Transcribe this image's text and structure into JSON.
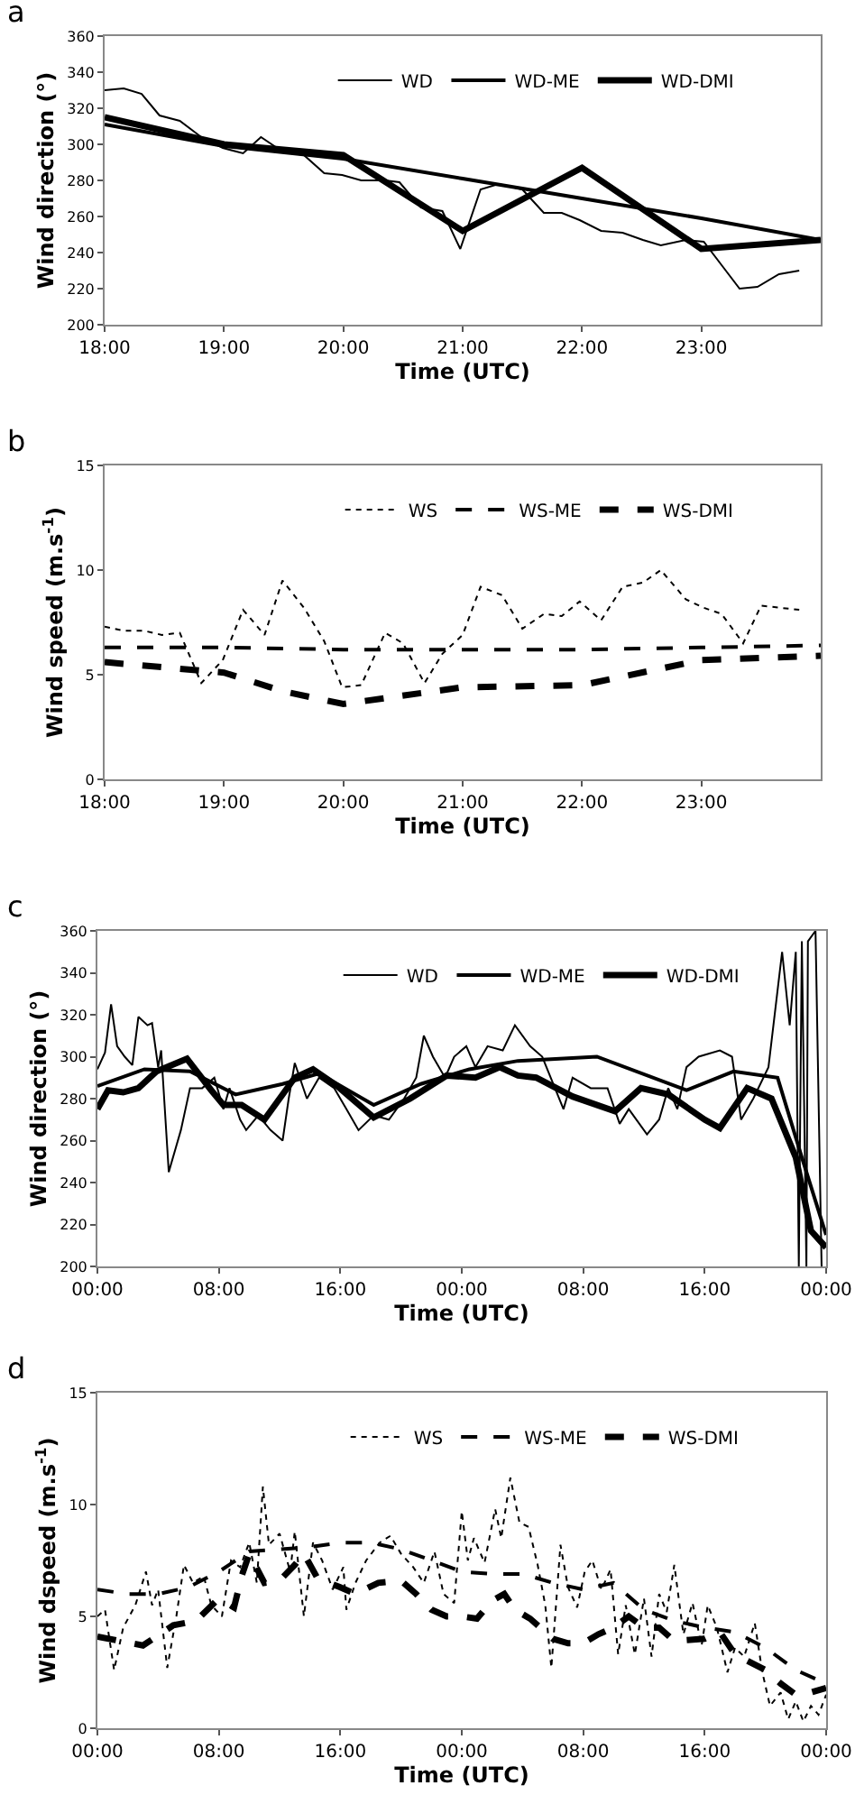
{
  "chart_data": [
    {
      "type": "line",
      "title": "a",
      "xlabel": "Time (UTC)",
      "ylabel": "Wind direction (°)",
      "legend": "top right",
      "xlim": [
        18,
        24
      ],
      "xticks": [
        {
          "value": 18,
          "label": "18:00"
        },
        {
          "value": 19,
          "label": "19:00"
        },
        {
          "value": 20,
          "label": "20:00"
        },
        {
          "value": 21,
          "label": "21:00"
        },
        {
          "value": 22,
          "label": "22:00"
        },
        {
          "value": 23,
          "label": "23:00"
        }
      ],
      "ylim": [
        200,
        360
      ],
      "yticks": [
        200,
        220,
        240,
        260,
        280,
        300,
        320,
        340,
        360
      ],
      "series": [
        {
          "name": "WD",
          "color": "#000000",
          "line_style": "solid",
          "x": [
            18,
            18.16,
            18.31,
            18.46,
            18.63,
            18.81,
            18.99,
            19.16,
            19.31,
            19.49,
            19.67,
            19.84,
            19.99,
            20.15,
            20.35,
            20.47,
            20.65,
            20.83,
            20.98,
            21.15,
            21.3,
            21.5,
            21.68,
            21.83,
            21.98,
            22.16,
            22.34,
            22.51,
            22.66,
            22.87,
            23.02,
            23.17,
            23.32,
            23.47,
            23.65,
            23.82
          ],
          "values": [
            330,
            331,
            328,
            316,
            313,
            304,
            298,
            295,
            304,
            296,
            294,
            284,
            283,
            280,
            280,
            279,
            265,
            263,
            242,
            275,
            278,
            275,
            262,
            262,
            258,
            252,
            251,
            247,
            244,
            247,
            246,
            233,
            220,
            221,
            228,
            230
          ]
        },
        {
          "name": "WD-ME",
          "color": "#000000",
          "line_style": "solid",
          "x": [
            18,
            19,
            20,
            21,
            22,
            23,
            24
          ],
          "values": [
            311,
            299,
            292,
            281,
            270,
            259,
            247
          ]
        },
        {
          "name": "WD-DMI",
          "color": "#000000",
          "line_style": "solid",
          "x": [
            18,
            19,
            20,
            21,
            22,
            23,
            24
          ],
          "values": [
            315,
            300,
            294,
            252,
            287,
            242,
            247
          ]
        }
      ]
    },
    {
      "type": "line",
      "title": "b",
      "xlabel": "Time (UTC)",
      "ylabel": "Wind speed (m.s$^{-1}$)",
      "legend": "top right",
      "xlim": [
        18,
        24
      ],
      "xticks": [
        {
          "value": 18,
          "label": "18:00"
        },
        {
          "value": 19,
          "label": "19:00"
        },
        {
          "value": 20,
          "label": "20:00"
        },
        {
          "value": 21,
          "label": "21:00"
        },
        {
          "value": 22,
          "label": "22:00"
        },
        {
          "value": 23,
          "label": "23:00"
        }
      ],
      "ylim": [
        0,
        15
      ],
      "yticks": [
        0,
        5,
        10,
        15
      ],
      "series": [
        {
          "name": "WS",
          "color": "#000000",
          "line_style": "dotted",
          "x": [
            18,
            18.16,
            18.33,
            18.48,
            18.63,
            18.81,
            18.99,
            19.16,
            19.34,
            19.49,
            19.67,
            19.84,
            19.99,
            20.15,
            20.35,
            20.5,
            20.68,
            20.83,
            21.0,
            21.15,
            21.33,
            21.5,
            21.68,
            21.83,
            21.98,
            22.16,
            22.34,
            22.51,
            22.66,
            22.87,
            23.02,
            23.17,
            23.35,
            23.5,
            23.82
          ],
          "values": [
            7.3,
            7.1,
            7.1,
            6.9,
            7.0,
            4.6,
            5.7,
            8.1,
            6.9,
            9.5,
            8.2,
            6.6,
            4.4,
            4.5,
            7.0,
            6.5,
            4.6,
            6.0,
            6.9,
            9.2,
            8.8,
            7.2,
            7.9,
            7.8,
            8.5,
            7.6,
            9.2,
            9.4,
            10.0,
            8.6,
            8.2,
            7.9,
            6.5,
            8.3,
            8.1
          ]
        },
        {
          "name": "WS-ME",
          "color": "#000000",
          "line_style": "dashed",
          "x": [
            18,
            19,
            20,
            21,
            22,
            23,
            24
          ],
          "values": [
            6.3,
            6.3,
            6.2,
            6.2,
            6.2,
            6.3,
            6.4
          ]
        },
        {
          "name": "WS-DMI",
          "color": "#000000",
          "line_style": "dashed",
          "x": [
            18,
            19,
            19.5,
            20,
            21,
            22,
            23,
            24
          ],
          "values": [
            5.6,
            5.1,
            4.2,
            3.6,
            4.4,
            4.5,
            5.7,
            5.9
          ]
        }
      ]
    },
    {
      "type": "line",
      "title": "c",
      "xlabel": "Time (UTC)",
      "ylabel": "Wind direction (°)",
      "legend": "top right",
      "xlim": [
        "--01-01T00:00",
        "--01-03T00:00"
      ],
      "xticks": [
        {
          "value": "--01-01T00:00",
          "label": "00:00"
        },
        {
          "value": "--01-01T08:00",
          "label": "08:00"
        },
        {
          "value": "--01-01T16:00",
          "label": "16:00"
        },
        {
          "value": "--01-02T00:00",
          "label": "00:00"
        },
        {
          "value": "--01-02T08:00",
          "label": "08:00"
        },
        {
          "value": "--01-02T16:00",
          "label": "16:00"
        },
        {
          "value": "--01-03T00:00",
          "label": "00:00"
        }
      ],
      "ylim": [
        200,
        360
      ],
      "yticks": [
        200,
        220,
        240,
        260,
        280,
        300,
        320,
        340,
        360
      ],
      "series": [
        {
          "name": "WD",
          "color": "#000000",
          "line_style": "solid",
          "x": [
            "--01-01T00:00",
            "--01-01T00:30",
            "--01-01T00:54",
            "--01-01T01:18",
            "--01-01T01:48",
            "--01-01T02:18",
            "--01-01T02:42",
            "--01-01T03:18",
            "--01-01T03:36",
            "--01-01T04:00",
            "--01-01T04:12",
            "--01-01T04:42",
            "--01-01T05:30",
            "--01-01T06:06",
            "--01-01T06:54",
            "--01-01T07:42",
            "--01-01T08:18",
            "--01-01T08:42",
            "--01-01T09:24",
            "--01-01T09:48",
            "--01-01T10:36",
            "--01-01T11:24",
            "--01-01T12:12",
            "--01-01T12:36",
            "--01-01T13:00",
            "--01-01T13:48",
            "--01-01T14:36",
            "--01-01T15:36",
            "--01-01T16:24",
            "--01-01T17:12",
            "--01-01T18:12",
            "--01-01T19:12",
            "--01-01T20:12",
            "--01-01T21:00",
            "--01-01T21:30",
            "--01-01T22:06",
            "--01-01T22:54",
            "--01-01T23:30",
            "--01-02T00:18",
            "--01-02T00:54",
            "--01-02T01:42",
            "--01-02T02:42",
            "--01-02T03:30",
            "--01-02T04:30",
            "--01-02T05:18",
            "--01-02T06:42",
            "--01-02T07:18",
            "--01-02T08:30",
            "--01-02T09:36",
            "--01-02T10:24",
            "--01-02T11:00",
            "--01-02T12:12",
            "--01-02T13:00",
            "--01-02T13:36",
            "--01-02T14:12",
            "--01-02T14:48",
            "--01-02T15:36",
            "--01-02T17:00",
            "--01-02T17:48",
            "--01-02T18:24",
            "--01-02T19:12",
            "--01-02T20:12",
            "--01-02T21:06",
            "--01-02T21:36",
            "--01-02T22:00",
            "--01-02T22:12",
            "--01-02T22:24",
            "--01-02T22:42",
            "--01-02T22:48",
            "--01-02T23:18",
            "--01-02T23:42"
          ],
          "values": [
            294,
            302,
            325,
            305,
            300,
            296,
            319,
            315,
            316,
            295,
            303,
            245,
            265,
            285,
            285,
            290,
            275,
            285,
            270,
            265,
            272,
            265,
            260,
            280,
            297,
            280,
            290,
            285,
            275,
            265,
            272,
            270,
            280,
            290,
            310,
            300,
            290,
            300,
            305,
            295,
            305,
            303,
            315,
            305,
            300,
            275,
            290,
            285,
            285,
            268,
            275,
            263,
            270,
            285,
            275,
            295,
            300,
            303,
            300,
            270,
            280,
            295,
            350,
            315,
            350,
            200,
            355,
            200,
            355,
            360,
            200
          ]
        },
        {
          "name": "WD-ME",
          "color": "#000000",
          "line_style": "solid",
          "x": [
            "--01-01T00:00",
            "--01-01T03:06",
            "--01-01T06:06",
            "--01-01T09:06",
            "--01-01T12:12",
            "--01-01T14:36",
            "--01-01T18:12",
            "--01-01T21:18",
            "--01-02T00:30",
            "--01-02T03:42",
            "--01-02T08:54",
            "--01-02T14:48",
            "--01-02T17:54",
            "--01-02T20:48",
            "--01-02T22:24",
            "--01-03T00:00"
          ],
          "values": [
            286,
            294,
            293,
            282,
            287,
            292,
            277,
            287,
            294,
            298,
            300,
            284,
            293,
            290,
            252,
            215
          ]
        },
        {
          "name": "WD-DMI",
          "color": "#000000",
          "line_style": "solid",
          "x": [
            "--01-01T00:00",
            "--01-01T00:42",
            "--01-01T01:42",
            "--01-01T02:42",
            "--01-01T03:54",
            "--01-01T05:54",
            "--01-01T07:30",
            "--01-01T08:18",
            "--01-01T09:30",
            "--01-01T11:00",
            "--01-01T13:00",
            "--01-01T14:12",
            "--01-01T15:48",
            "--01-01T18:12",
            "--01-01T20:36",
            "--01-01T23:00",
            "--01-02T00:54",
            "--01-02T02:30",
            "--01-02T03:42",
            "--01-02T04:54",
            "--01-02T07:18",
            "--01-02T10:06",
            "--01-02T11:48",
            "--01-02T13:36",
            "--01-02T16:00",
            "--01-02T17:00",
            "--01-02T18:48",
            "--01-02T20:24",
            "--01-02T22:00",
            "--01-02T23:00",
            "--01-03T00:00"
          ],
          "values": [
            275,
            284,
            283,
            285,
            293,
            299,
            284,
            277,
            277,
            270,
            290,
            294,
            286,
            271,
            280,
            291,
            290,
            295,
            291,
            290,
            281,
            274,
            285,
            282,
            270,
            266,
            285,
            280,
            252,
            217,
            209
          ]
        }
      ]
    },
    {
      "type": "line",
      "title": "d",
      "xlabel": "Time (UTC)",
      "ylabel": "Wind dspeed (m.s$^{-1}$)",
      "legend": "top right",
      "xlim": [
        "--01-01T00:00",
        "--01-03T00:00"
      ],
      "xticks": [
        {
          "value": "--01-01T00:00",
          "label": "00:00"
        },
        {
          "value": "--01-01T08:00",
          "label": "08:00"
        },
        {
          "value": "--01-01T16:00",
          "label": "16:00"
        },
        {
          "value": "--01-02T00:00",
          "label": "00:00"
        },
        {
          "value": "--01-02T08:00",
          "label": "08:00"
        },
        {
          "value": "--01-02T16:00",
          "label": "16:00"
        },
        {
          "value": "--01-03T00:00",
          "label": "00:00"
        }
      ],
      "ylim": [
        0,
        15
      ],
      "yticks": [
        0,
        5,
        10,
        15
      ],
      "series": [
        {
          "name": "WS",
          "color": "#000000",
          "line_style": "dotted",
          "x": [
            "--01-01T00:00",
            "--01-01T00:30",
            "--01-01T01:06",
            "--01-01T01:42",
            "--01-01T02:30",
            "--01-01T03:12",
            "--01-01T03:36",
            "--01-01T04:00",
            "--01-01T04:36",
            "--01-01T05:12",
            "--01-01T05:42",
            "--01-01T06:18",
            "--01-01T07:00",
            "--01-01T07:30",
            "--01-01T08:12",
            "--01-01T08:48",
            "--01-01T09:24",
            "--01-01T10:00",
            "--01-01T10:30",
            "--01-01T10:54",
            "--01-01T11:18",
            "--01-01T12:00",
            "--01-01T12:42",
            "--01-01T13:00",
            "--01-01T13:36",
            "--01-01T14:12",
            "--01-01T14:48",
            "--01-01T15:30",
            "--01-01T16:12",
            "--01-01T16:24",
            "--01-01T17:00",
            "--01-01T17:42",
            "--01-01T18:36",
            "--01-01T19:18",
            "--01-01T20:00",
            "--01-01T20:48",
            "--01-01T21:30",
            "--01-01T22:12",
            "--01-01T22:48",
            "--01-01T23:30",
            "--01-02T00:00",
            "--01-02T00:24",
            "--01-02T00:48",
            "--01-02T01:30",
            "--01-02T02:12",
            "--01-02T02:36",
            "--01-02T03:12",
            "--01-02T03:48",
            "--01-02T04:24",
            "--01-02T05:00",
            "--01-02T05:30",
            "--01-02T05:54",
            "--01-02T06:30",
            "--01-02T07:00",
            "--01-02T07:36",
            "--01-02T08:06",
            "--01-02T08:36",
            "--01-02T09:12",
            "--01-02T09:48",
            "--01-02T10:18",
            "--01-02T10:48",
            "--01-02T11:24",
            "--01-02T12:00",
            "--01-02T12:30",
            "--01-02T13:00",
            "--01-02T13:30",
            "--01-02T14:00",
            "--01-02T14:36",
            "--01-02T15:12",
            "--01-02T15:48",
            "--01-02T16:12",
            "--01-02T16:48",
            "--01-02T17:30",
            "--01-02T18:00",
            "--01-02T18:36",
            "--01-02T19:18",
            "--01-02T19:48",
            "--01-02T20:18",
            "--01-02T21:00",
            "--01-02T21:30",
            "--01-02T22:00",
            "--01-02T22:30",
            "--01-02T23:00",
            "--01-02T23:30",
            "--01-03T00:00"
          ],
          "values": [
            5.0,
            5.3,
            2.6,
            4.5,
            5.5,
            7.0,
            5.5,
            6.2,
            2.7,
            5.0,
            7.3,
            6.5,
            6.8,
            5.5,
            5.0,
            7.5,
            7.2,
            8.3,
            6.5,
            10.8,
            8.2,
            8.7,
            7.0,
            8.8,
            5.0,
            8.3,
            7.5,
            6.2,
            7.2,
            5.3,
            6.5,
            7.5,
            8.3,
            8.6,
            7.8,
            7.2,
            6.5,
            7.9,
            6.0,
            5.6,
            9.7,
            7.5,
            8.5,
            7.4,
            9.8,
            8.5,
            11.2,
            9.2,
            9.0,
            7.3,
            5.5,
            2.7,
            8.2,
            6.3,
            5.4,
            7.0,
            7.5,
            6.2,
            7.1,
            3.3,
            5.5,
            3.3,
            5.8,
            3.2,
            6.0,
            5.2,
            7.3,
            4.2,
            5.6,
            3.7,
            5.5,
            4.5,
            2.5,
            3.6,
            3.2,
            4.7,
            2.5,
            1.0,
            1.6,
            0.4,
            1.2,
            0.3,
            1.0,
            0.6,
            1.5
          ]
        },
        {
          "name": "WS-ME",
          "color": "#000000",
          "line_style": "dashed",
          "x": [
            "--01-01T00:00",
            "--01-01T02:00",
            "--01-01T04:00",
            "--01-01T06:00",
            "--01-01T08:00",
            "--01-01T10:00",
            "--01-01T12:00",
            "--01-01T14:00",
            "--01-01T16:00",
            "--01-01T18:00",
            "--01-01T20:00",
            "--01-01T22:00",
            "--01-02T00:00",
            "--01-02T02:00",
            "--01-02T04:00",
            "--01-02T06:00",
            "--01-02T08:00",
            "--01-02T10:00",
            "--01-02T12:00",
            "--01-02T14:00",
            "--01-02T16:00",
            "--01-02T18:00",
            "--01-02T20:00",
            "--01-02T22:00",
            "--01-03T00:00"
          ],
          "values": [
            6.2,
            6.0,
            6.0,
            6.3,
            7.0,
            7.9,
            8.0,
            8.1,
            8.3,
            8.3,
            8.0,
            7.5,
            7.0,
            6.9,
            6.9,
            6.5,
            6.2,
            6.5,
            5.3,
            4.8,
            4.5,
            4.3,
            3.6,
            2.6,
            2.0
          ]
        },
        {
          "name": "WS-DMI",
          "color": "#000000",
          "line_style": "dashed",
          "x": [
            "--01-01T00:00",
            "--01-01T01:30",
            "--01-01T03:00",
            "--01-01T05:00",
            "--01-01T06:30",
            "--01-01T08:00",
            "--01-01T09:00",
            "--01-01T09:30",
            "--01-01T10:00",
            "--01-01T11:00",
            "--01-01T12:00",
            "--01-01T13:00",
            "--01-01T13:36",
            "--01-01T14:30",
            "--01-01T16:00",
            "--01-01T17:00",
            "--01-01T18:30",
            "--01-01T20:00",
            "--01-01T21:00",
            "--01-01T22:00",
            "--01-01T23:00",
            "--01-02T00:00",
            "--01-02T01:00",
            "--01-02T02:00",
            "--01-02T02:48",
            "--01-02T03:30",
            "--01-02T04:30",
            "--01-02T06:00",
            "--01-02T07:00",
            "--01-02T08:00",
            "--01-02T09:00",
            "--01-02T10:00",
            "--01-02T11:00",
            "--01-02T12:00",
            "--01-02T13:00",
            "--01-02T14:00",
            "--01-02T16:00",
            "--01-02T17:00",
            "--01-02T18:00",
            "--01-02T20:00",
            "--01-02T21:00",
            "--01-02T22:00",
            "--01-02T23:00",
            "--01-03T00:00"
          ],
          "values": [
            4.1,
            3.9,
            3.7,
            4.6,
            4.8,
            5.8,
            5.4,
            6.8,
            7.8,
            6.5,
            6.6,
            7.3,
            7.8,
            6.7,
            6.3,
            6.0,
            6.5,
            6.6,
            6.0,
            5.3,
            5.0,
            5.0,
            4.9,
            5.7,
            6.0,
            5.3,
            4.9,
            4.0,
            3.8,
            3.8,
            4.2,
            4.5,
            5.0,
            4.5,
            4.5,
            3.9,
            4.0,
            4.3,
            3.3,
            2.6,
            2.0,
            1.5,
            1.6,
            1.8
          ]
        }
      ]
    }
  ]
}
